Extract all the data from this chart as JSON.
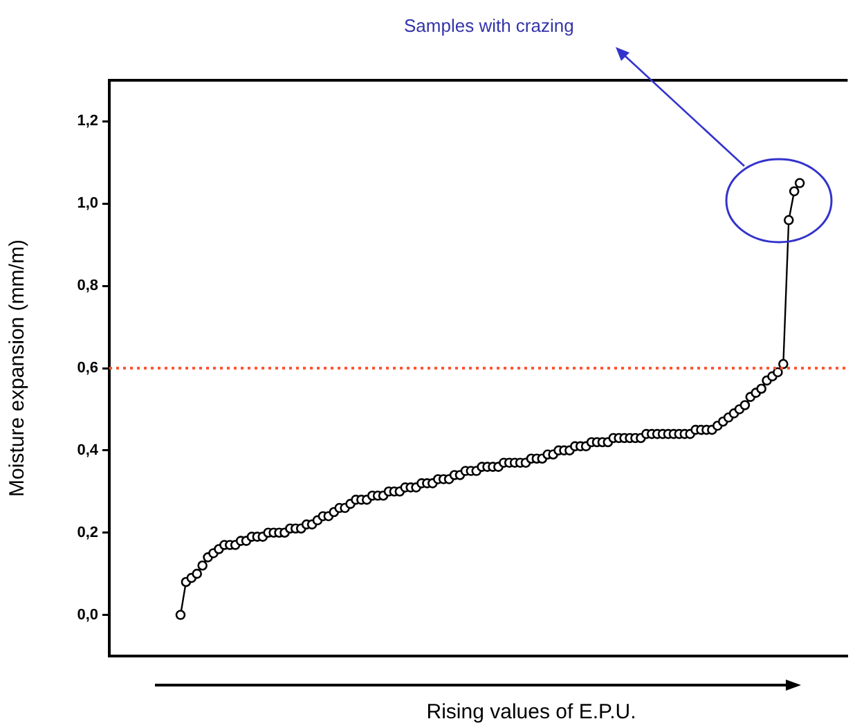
{
  "chart_data": {
    "type": "line",
    "categories": [
      null,
      null,
      null,
      null,
      null,
      null,
      null,
      null,
      null,
      null,
      null,
      null,
      null,
      null,
      null,
      null,
      null,
      null,
      null,
      null,
      null,
      null,
      null,
      null,
      null,
      null,
      null,
      null,
      null,
      null,
      null,
      null,
      null,
      null,
      null,
      null,
      null,
      null,
      null,
      null,
      null,
      null,
      null,
      null,
      null,
      null,
      null,
      null,
      null,
      null,
      null,
      null,
      null,
      null,
      null,
      null,
      null,
      null,
      null,
      null,
      null,
      null,
      null,
      null,
      null,
      null,
      null,
      null,
      null,
      null,
      null,
      null,
      null,
      null,
      null,
      null,
      null,
      null,
      null,
      null,
      null,
      null,
      null,
      null,
      null,
      null,
      null,
      null,
      null,
      null,
      null,
      null,
      null,
      null,
      null,
      null,
      null,
      null,
      null,
      null,
      null,
      null,
      null,
      null,
      null,
      null,
      null,
      null,
      null,
      null,
      null,
      null,
      null,
      null
    ],
    "values": [
      0.0,
      0.08,
      0.09,
      0.1,
      0.12,
      0.14,
      0.15,
      0.16,
      0.17,
      0.17,
      0.17,
      0.18,
      0.18,
      0.19,
      0.19,
      0.19,
      0.2,
      0.2,
      0.2,
      0.2,
      0.21,
      0.21,
      0.21,
      0.22,
      0.22,
      0.23,
      0.24,
      0.24,
      0.25,
      0.26,
      0.26,
      0.27,
      0.28,
      0.28,
      0.28,
      0.29,
      0.29,
      0.29,
      0.3,
      0.3,
      0.3,
      0.31,
      0.31,
      0.31,
      0.32,
      0.32,
      0.32,
      0.33,
      0.33,
      0.33,
      0.34,
      0.34,
      0.35,
      0.35,
      0.35,
      0.36,
      0.36,
      0.36,
      0.36,
      0.37,
      0.37,
      0.37,
      0.37,
      0.37,
      0.38,
      0.38,
      0.38,
      0.39,
      0.39,
      0.4,
      0.4,
      0.4,
      0.41,
      0.41,
      0.41,
      0.42,
      0.42,
      0.42,
      0.42,
      0.43,
      0.43,
      0.43,
      0.43,
      0.43,
      0.43,
      0.44,
      0.44,
      0.44,
      0.44,
      0.44,
      0.44,
      0.44,
      0.44,
      0.44,
      0.45,
      0.45,
      0.45,
      0.45,
      0.46,
      0.47,
      0.48,
      0.49,
      0.5,
      0.51,
      0.53,
      0.54,
      0.55,
      0.57,
      0.58,
      0.59,
      0.61,
      0.96,
      1.03,
      1.05
    ],
    "color": "#000000",
    "marker": "circle",
    "xlabel": "Rising values of E.P.U.",
    "ylabel": "Moisture expansion (mm/m)",
    "ylim": [
      -0.1,
      1.3
    ],
    "yticks": [
      {
        "value": 0,
        "label": "0,0"
      },
      {
        "value": 0.2,
        "label": "0,2"
      },
      {
        "value": 0.4,
        "label": "0,4"
      },
      {
        "value": 0.6,
        "label": "0,6"
      },
      {
        "value": 0.8,
        "label": "0,8"
      },
      {
        "value": 1.0,
        "label": "1,0"
      },
      {
        "value": 1.2,
        "label": "1,2"
      }
    ],
    "ref_lines": [
      {
        "axis": "y",
        "value": 0.6,
        "color": "#ff5533",
        "line_style": "dotted"
      }
    ],
    "annotations": [
      "Samples with crazing"
    ],
    "tick_labels": "y"
  }
}
